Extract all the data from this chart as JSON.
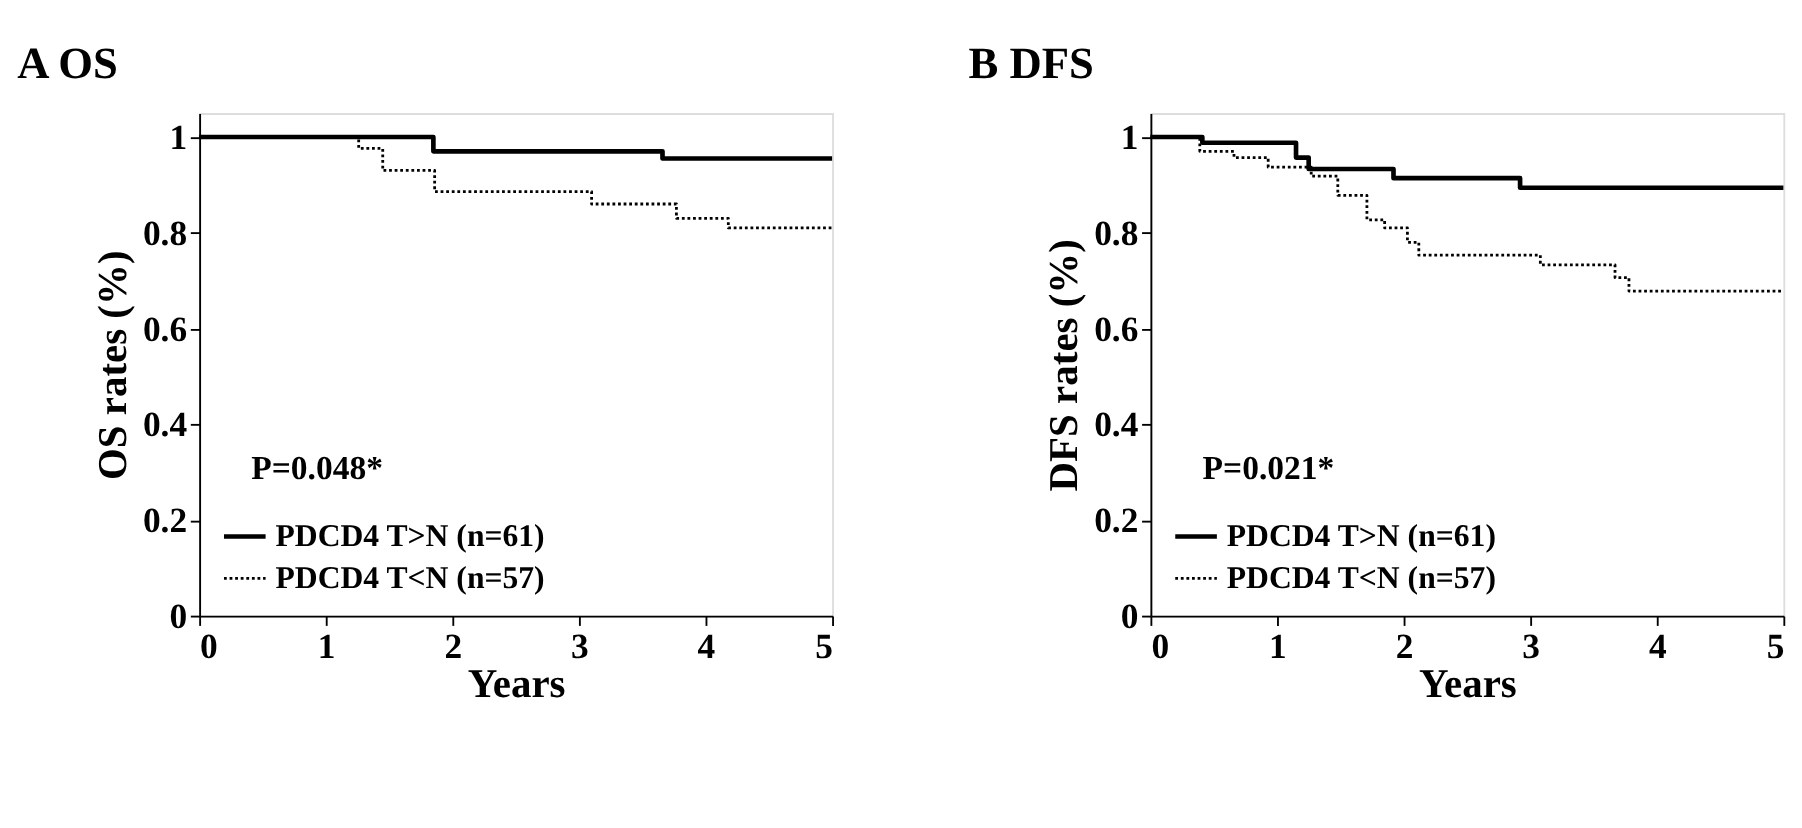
{
  "chart_data": [
    {
      "type": "step",
      "title": "A    OS",
      "xlabel": "Years",
      "ylabel": "OS rates (%)",
      "xlim": [
        0,
        5
      ],
      "xticks": [
        0,
        1,
        2,
        3,
        4,
        5
      ],
      "ylim": [
        0,
        1.05
      ],
      "yticks": [
        0,
        0.2,
        0.4,
        0.6,
        0.8,
        1
      ],
      "grid": false,
      "legend": "bottom left",
      "annotations": [
        "P=0.048*"
      ],
      "series": [
        {
          "name": "PDCD4 T>N  (n=61)",
          "color": "#000000",
          "line_style": "solid",
          "x": [
            0,
            1.85,
            3.66,
            5
          ],
          "values": [
            1,
            0.97,
            0.955,
            0.955
          ]
        },
        {
          "name": "PDCD4 T<N  (n=57)",
          "color": "#000000",
          "line_style": "dotted",
          "x": [
            0,
            1.26,
            1.45,
            1.86,
            3.1,
            3.77,
            4.18,
            5
          ],
          "values": [
            1,
            0.976,
            0.93,
            0.886,
            0.86,
            0.83,
            0.81,
            0.81
          ]
        }
      ]
    },
    {
      "type": "step",
      "title": "B    DFS",
      "xlabel": "Years",
      "ylabel": "DFS rates (%)",
      "xlim": [
        0,
        5
      ],
      "xticks": [
        0,
        1,
        2,
        3,
        4,
        5
      ],
      "ylim": [
        0,
        1.05
      ],
      "yticks": [
        0,
        0.2,
        0.4,
        0.6,
        0.8,
        1
      ],
      "grid": false,
      "legend": "bottom left",
      "annotations": [
        "P=0.021*"
      ],
      "series": [
        {
          "name": "PDCD4 T>N  (n=61)",
          "color": "#000000",
          "line_style": "solid",
          "x": [
            0,
            0.41,
            1.15,
            1.25,
            1.92,
            2.92,
            5
          ],
          "values": [
            1,
            0.988,
            0.957,
            0.933,
            0.914,
            0.894,
            0.894
          ]
        },
        {
          "name": "PDCD4 T<N  (n=57)",
          "color": "#000000",
          "line_style": "dotted",
          "x": [
            0,
            0.39,
            0.66,
            0.93,
            1.27,
            1.48,
            1.71,
            1.85,
            2.03,
            2.12,
            3.08,
            3.67,
            3.78,
            5
          ],
          "values": [
            1,
            0.97,
            0.957,
            0.937,
            0.918,
            0.878,
            0.827,
            0.81,
            0.78,
            0.753,
            0.733,
            0.706,
            0.678,
            0.678
          ]
        }
      ]
    }
  ]
}
